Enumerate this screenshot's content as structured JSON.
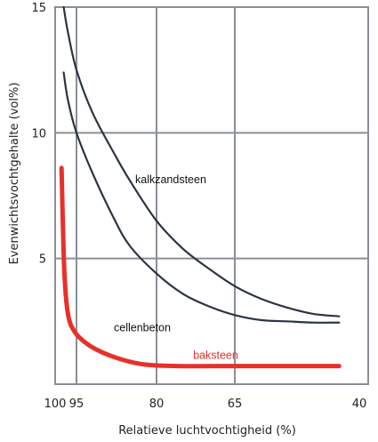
{
  "chart_data": {
    "type": "line",
    "title": "",
    "xlabel": "Relatieve luchtvochtigheid (%)",
    "ylabel": "Evenwichtsvochtgehalte (vol%)",
    "xlim": [
      100,
      40
    ],
    "ylim": [
      0,
      15
    ],
    "grid": true,
    "x_ticks": [
      100,
      95,
      80,
      65,
      40
    ],
    "x_tick_labels": [
      "100",
      "95",
      "80",
      "65",
      "40"
    ],
    "y_ticks": [
      5,
      10,
      15
    ],
    "y_tick_labels": [
      "5",
      "10",
      "15"
    ],
    "series": [
      {
        "name": "kalkzandsteen",
        "color": "#2b3442",
        "points": [
          [
            98,
            15.0
          ],
          [
            97,
            14.0
          ],
          [
            95,
            12.5
          ],
          [
            92,
            10.8
          ],
          [
            88,
            9.2
          ],
          [
            85,
            8.1
          ],
          [
            80,
            6.5
          ],
          [
            75,
            5.4
          ],
          [
            70,
            4.6
          ],
          [
            65,
            3.9
          ],
          [
            60,
            3.4
          ],
          [
            55,
            3.05
          ],
          [
            50,
            2.8
          ],
          [
            45,
            2.7
          ]
        ]
      },
      {
        "name": "cellenbeton",
        "color": "#2b3442",
        "points": [
          [
            98,
            12.4
          ],
          [
            97,
            11.3
          ],
          [
            95,
            10.0
          ],
          [
            92,
            8.4
          ],
          [
            88,
            6.6
          ],
          [
            85,
            5.5
          ],
          [
            80,
            4.4
          ],
          [
            75,
            3.6
          ],
          [
            70,
            3.1
          ],
          [
            65,
            2.75
          ],
          [
            60,
            2.55
          ],
          [
            55,
            2.5
          ],
          [
            50,
            2.45
          ],
          [
            45,
            2.45
          ]
        ]
      },
      {
        "name": "baksteen",
        "color": "#e8302a",
        "points": [
          [
            98.5,
            8.6
          ],
          [
            98.2,
            6.5
          ],
          [
            97.8,
            4.3
          ],
          [
            97,
            2.8
          ],
          [
            95.5,
            2.1
          ],
          [
            93,
            1.6
          ],
          [
            90,
            1.25
          ],
          [
            86,
            0.95
          ],
          [
            82,
            0.78
          ],
          [
            76,
            0.72
          ],
          [
            65,
            0.72
          ],
          [
            55,
            0.72
          ],
          [
            45,
            0.72
          ]
        ]
      }
    ],
    "annotations": [
      {
        "text": "kalkzandsteen",
        "x": 84,
        "y": 8.0,
        "color": "#111111"
      },
      {
        "text": "cellenbeton",
        "x": 88,
        "y": 2.1,
        "color": "#111111"
      },
      {
        "text": "baksteen",
        "x": 73,
        "y": 1.0,
        "color": "#e8302a"
      }
    ]
  }
}
